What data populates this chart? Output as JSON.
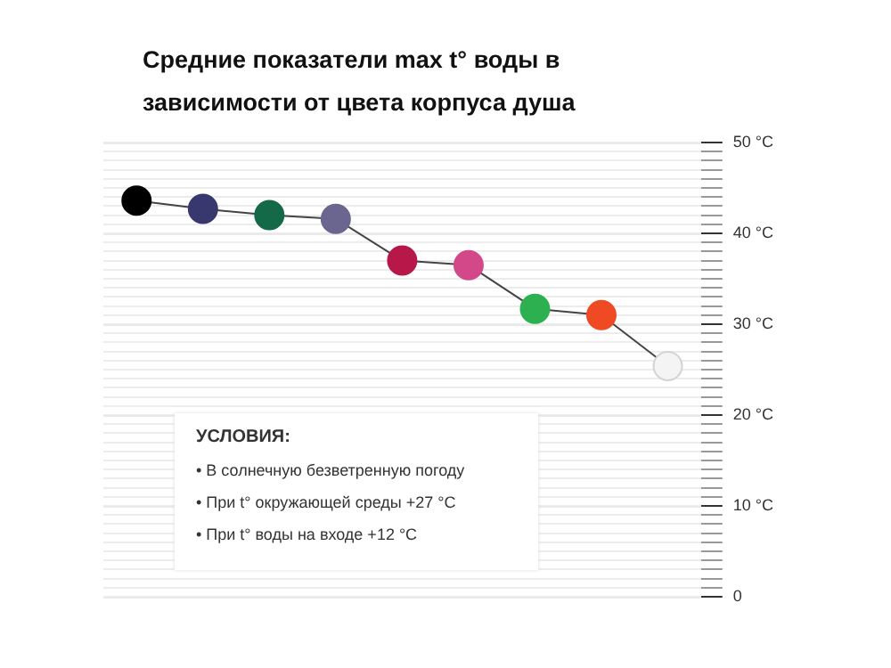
{
  "chart_data": {
    "type": "line",
    "title": "Средние показатели max t° воды в зависимости от цвета корпуса душа",
    "categories": [
      null,
      null,
      null,
      null,
      null,
      null,
      null,
      null,
      null
    ],
    "values": [
      43.6,
      42.7,
      42.0,
      41.6,
      37.0,
      36.5,
      31.7,
      31.0,
      25.4
    ],
    "color": "#444444",
    "colors": [
      "#000000",
      "#38386e",
      "#146a48",
      "#6a6690",
      "#b8174a",
      "#d34888",
      "#2db04f",
      "#ef4a23",
      "#f4f4f4"
    ],
    "marker": "circle",
    "line_style": "solid",
    "grid": "y",
    "tick_labels": "y",
    "legend": false,
    "ylim": [
      0,
      50
    ],
    "yticks": [
      {
        "value": 0,
        "label": "0"
      },
      {
        "value": 1,
        "label": null
      },
      {
        "value": 2,
        "label": null
      },
      {
        "value": 3,
        "label": null
      },
      {
        "value": 4,
        "label": null
      },
      {
        "value": 5,
        "label": null
      },
      {
        "value": 6,
        "label": null
      },
      {
        "value": 7,
        "label": null
      },
      {
        "value": 8,
        "label": null
      },
      {
        "value": 9,
        "label": null
      },
      {
        "value": 10,
        "label": "10 °C"
      },
      {
        "value": 11,
        "label": null
      },
      {
        "value": 12,
        "label": null
      },
      {
        "value": 13,
        "label": null
      },
      {
        "value": 14,
        "label": null
      },
      {
        "value": 15,
        "label": null
      },
      {
        "value": 16,
        "label": null
      },
      {
        "value": 17,
        "label": null
      },
      {
        "value": 18,
        "label": null
      },
      {
        "value": 19,
        "label": null
      },
      {
        "value": 20,
        "label": "20 °C"
      },
      {
        "value": 21,
        "label": null
      },
      {
        "value": 22,
        "label": null
      },
      {
        "value": 23,
        "label": null
      },
      {
        "value": 24,
        "label": null
      },
      {
        "value": 25,
        "label": null
      },
      {
        "value": 26,
        "label": null
      },
      {
        "value": 27,
        "label": null
      },
      {
        "value": 28,
        "label": null
      },
      {
        "value": 29,
        "label": null
      },
      {
        "value": 30,
        "label": "30 °C"
      },
      {
        "value": 31,
        "label": null
      },
      {
        "value": 32,
        "label": null
      },
      {
        "value": 33,
        "label": null
      },
      {
        "value": 34,
        "label": null
      },
      {
        "value": 35,
        "label": null
      },
      {
        "value": 36,
        "label": null
      },
      {
        "value": 37,
        "label": null
      },
      {
        "value": 38,
        "label": null
      },
      {
        "value": 39,
        "label": null
      },
      {
        "value": 40,
        "label": "40 °C"
      },
      {
        "value": 41,
        "label": null
      },
      {
        "value": 42,
        "label": null
      },
      {
        "value": 43,
        "label": null
      },
      {
        "value": 44,
        "label": null
      },
      {
        "value": 45,
        "label": null
      },
      {
        "value": 46,
        "label": null
      },
      {
        "value": 47,
        "label": null
      },
      {
        "value": 48,
        "label": null
      },
      {
        "value": 49,
        "label": null
      },
      {
        "value": 50,
        "label": "50 °C"
      }
    ],
    "annotations": [
      "УСЛОВИЯ:",
      "• В солнечную безветренную погоду",
      "• При t° окружающей среды +27 °C",
      "• При t° воды на входе +12 °C"
    ]
  }
}
